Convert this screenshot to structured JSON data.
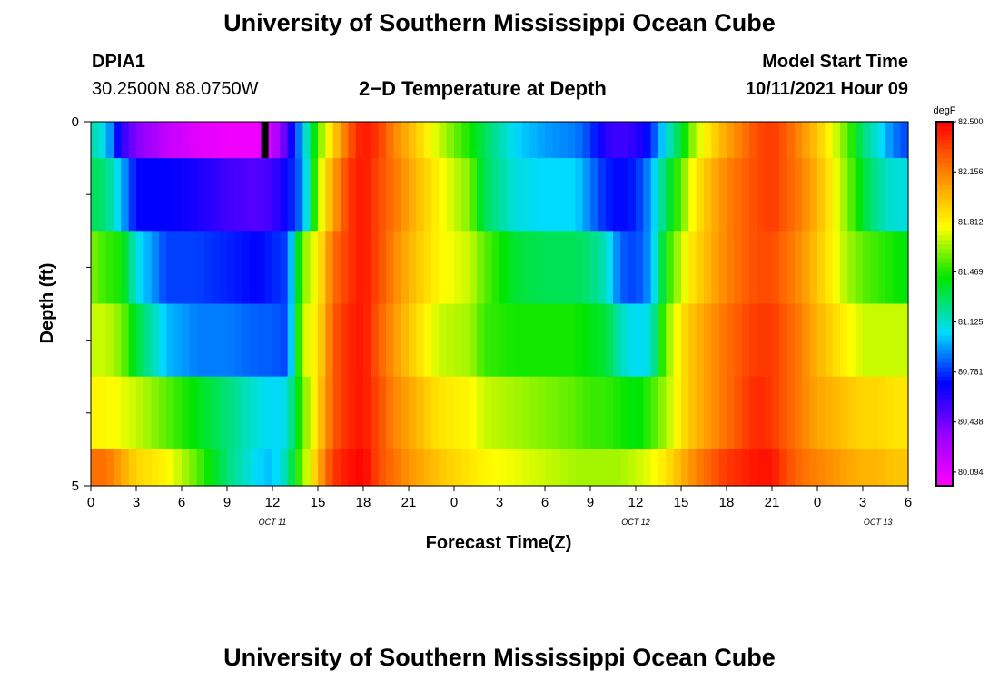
{
  "page": {
    "title_top": "University of Southern Mississippi Ocean Cube",
    "title_bottom": "University of Southern Mississippi Ocean Cube",
    "station_id": "DPIA1",
    "station_coords": "30.2500N  88.0750W",
    "plot_title": "2−D Temperature at Depth",
    "model_start_label": "Model Start Time",
    "model_start_value": "10/11/2021 Hour 09"
  },
  "chart_data": {
    "type": "heatmap",
    "title": "2−D Temperature at Depth",
    "xlabel": "Forecast Time(Z)",
    "ylabel": "Depth (ft)",
    "x_ticks": [
      "0",
      "3",
      "6",
      "9",
      "12",
      "15",
      "18",
      "21",
      "0",
      "3",
      "6",
      "9",
      "12",
      "15",
      "18",
      "21",
      "0",
      "3",
      "6"
    ],
    "date_labels": [
      {
        "label": "OCT 11",
        "hour": 12
      },
      {
        "label": "OCT 12",
        "hour": 36
      },
      {
        "label": "OCT 13",
        "hour": 52
      }
    ],
    "y_labels": [
      {
        "label": "0",
        "depth": 0
      },
      {
        "label": "5",
        "depth": 5
      }
    ],
    "x_range_hours": [
      0,
      54
    ],
    "depth_range_ft": [
      0,
      5
    ],
    "depth_layers": [
      0.5,
      1.5,
      2.5,
      3.5,
      4.5
    ],
    "layer_bounds_ft": [
      0,
      0.5,
      1.5,
      2.5,
      3.5,
      4.5,
      5
    ],
    "model_start_marker": {
      "hour": 11.5,
      "depth_from": 0,
      "depth_to": 0.5
    },
    "colorbar": {
      "unit": "degF",
      "min": 80.0,
      "max": 82.5,
      "tick_labels": [
        "82.500",
        "82.156",
        "81.812",
        "81.469",
        "81.125",
        "80.781",
        "80.438",
        "80.094"
      ],
      "tick_values": [
        82.5,
        82.156,
        81.812,
        81.469,
        81.125,
        80.781,
        80.438,
        80.094
      ]
    },
    "keyframes": [
      {
        "hour": 0,
        "layers": [
          81.2,
          81.3,
          81.6,
          81.7,
          81.8,
          82.2
        ]
      },
      {
        "hour": 1,
        "layers": [
          81.05,
          81.25,
          81.5,
          81.7,
          81.8,
          82.2
        ]
      },
      {
        "hour": 2,
        "layers": [
          80.6,
          81.0,
          81.45,
          81.6,
          81.75,
          82.05
        ]
      },
      {
        "hour": 3,
        "layers": [
          80.4,
          80.7,
          81.1,
          81.35,
          81.7,
          81.9
        ]
      },
      {
        "hour": 5,
        "layers": [
          80.2,
          80.7,
          80.8,
          81.0,
          81.55,
          81.8
        ]
      },
      {
        "hour": 7,
        "layers": [
          80.1,
          80.65,
          80.8,
          80.9,
          81.4,
          81.55
        ]
      },
      {
        "hour": 9,
        "layers": [
          80.05,
          80.55,
          80.75,
          80.9,
          81.25,
          81.25
        ]
      },
      {
        "hour": 11,
        "layers": [
          80.05,
          80.5,
          80.7,
          80.85,
          81.1,
          81.05
        ]
      },
      {
        "hour": 12,
        "layers": [
          80.15,
          80.55,
          80.75,
          80.85,
          81.05,
          81.0
        ]
      },
      {
        "hour": 13,
        "layers": [
          80.55,
          80.7,
          80.8,
          80.8,
          81.1,
          81.2
        ]
      },
      {
        "hour": 14,
        "layers": [
          81.0,
          80.9,
          81.6,
          81.7,
          81.55,
          81.6
        ]
      },
      {
        "hour": 15,
        "layers": [
          81.55,
          81.65,
          81.8,
          81.85,
          81.9,
          82.0
        ]
      },
      {
        "hour": 16,
        "layers": [
          81.9,
          82.05,
          82.2,
          82.25,
          82.25,
          82.35
        ]
      },
      {
        "hour": 17,
        "layers": [
          82.25,
          82.35,
          82.35,
          82.4,
          82.4,
          82.45
        ]
      },
      {
        "hour": 18,
        "layers": [
          82.45,
          82.45,
          82.45,
          82.45,
          82.45,
          82.5
        ]
      },
      {
        "hour": 19,
        "layers": [
          82.35,
          82.3,
          82.3,
          82.25,
          82.3,
          82.3
        ]
      },
      {
        "hour": 20,
        "layers": [
          82.15,
          82.2,
          82.15,
          82.1,
          82.15,
          82.2
        ]
      },
      {
        "hour": 21,
        "layers": [
          82.0,
          82.05,
          82.0,
          81.95,
          82.05,
          82.1
        ]
      },
      {
        "hour": 23,
        "layers": [
          81.7,
          81.8,
          81.8,
          81.7,
          81.85,
          81.95
        ]
      },
      {
        "hour": 25,
        "layers": [
          81.45,
          81.6,
          81.7,
          81.65,
          81.8,
          81.85
        ]
      },
      {
        "hour": 26,
        "layers": [
          81.3,
          81.3,
          81.55,
          81.5,
          81.7,
          81.8
        ]
      },
      {
        "hour": 28,
        "layers": [
          81.05,
          81.1,
          81.35,
          81.45,
          81.65,
          81.75
        ]
      },
      {
        "hour": 30,
        "layers": [
          80.95,
          81.05,
          81.3,
          81.45,
          81.6,
          81.7
        ]
      },
      {
        "hour": 32,
        "layers": [
          80.9,
          81.05,
          81.3,
          81.45,
          81.55,
          81.65
        ]
      },
      {
        "hour": 33,
        "layers": [
          80.8,
          80.9,
          81.25,
          81.4,
          81.5,
          81.65
        ]
      },
      {
        "hour": 34,
        "layers": [
          80.6,
          80.75,
          81.15,
          81.35,
          81.5,
          81.65
        ]
      },
      {
        "hour": 35,
        "layers": [
          80.55,
          80.7,
          80.85,
          81.15,
          81.45,
          81.65
        ]
      },
      {
        "hour": 36,
        "layers": [
          80.6,
          80.75,
          80.8,
          81.05,
          81.4,
          81.7
        ]
      },
      {
        "hour": 37,
        "layers": [
          80.75,
          80.95,
          80.95,
          81.1,
          81.5,
          81.75
        ]
      },
      {
        "hour": 38,
        "layers": [
          81.1,
          81.3,
          81.45,
          81.6,
          81.65,
          81.85
        ]
      },
      {
        "hour": 39,
        "layers": [
          81.35,
          81.55,
          81.7,
          81.85,
          81.85,
          82.0
        ]
      },
      {
        "hour": 40,
        "layers": [
          81.7,
          81.85,
          81.9,
          82.0,
          82.0,
          82.15
        ]
      },
      {
        "hour": 42,
        "layers": [
          82.05,
          82.15,
          82.15,
          82.2,
          82.2,
          82.35
        ]
      },
      {
        "hour": 44,
        "layers": [
          82.3,
          82.3,
          82.3,
          82.35,
          82.4,
          82.45
        ]
      },
      {
        "hour": 45,
        "layers": [
          82.35,
          82.35,
          82.3,
          82.35,
          82.35,
          82.45
        ]
      },
      {
        "hour": 46,
        "layers": [
          82.25,
          82.25,
          82.2,
          82.25,
          82.25,
          82.3
        ]
      },
      {
        "hour": 47,
        "layers": [
          82.1,
          82.15,
          82.1,
          82.15,
          82.15,
          82.2
        ]
      },
      {
        "hour": 48,
        "layers": [
          81.95,
          82.0,
          81.95,
          82.0,
          82.05,
          82.15
        ]
      },
      {
        "hour": 49,
        "layers": [
          81.75,
          81.8,
          81.8,
          81.9,
          82.0,
          82.1
        ]
      },
      {
        "hour": 50,
        "layers": [
          81.55,
          81.6,
          81.65,
          81.8,
          81.95,
          82.05
        ]
      },
      {
        "hour": 51,
        "layers": [
          81.25,
          81.35,
          81.55,
          81.7,
          81.9,
          82.0
        ]
      },
      {
        "hour": 52,
        "layers": [
          81.1,
          81.2,
          81.5,
          81.7,
          81.9,
          82.0
        ]
      },
      {
        "hour": 53,
        "layers": [
          80.9,
          81.1,
          81.45,
          81.7,
          81.85,
          81.95
        ]
      },
      {
        "hour": 54,
        "layers": [
          80.8,
          81.1,
          81.4,
          81.7,
          81.85,
          81.95
        ]
      }
    ]
  }
}
